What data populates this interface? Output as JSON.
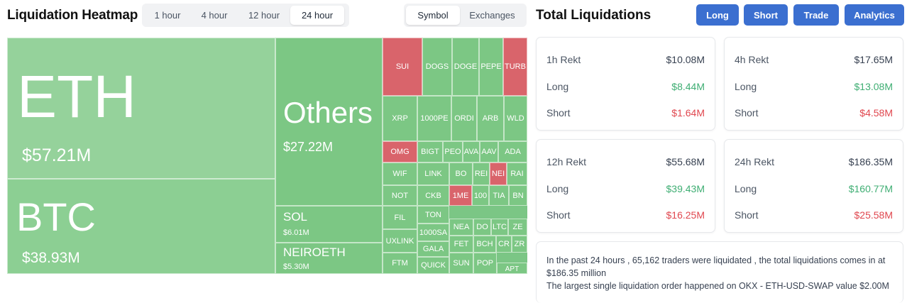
{
  "heatmap": {
    "title": "Liquidation Heatmap",
    "timeframes": [
      "1 hour",
      "4 hour",
      "12 hour",
      "24 hour"
    ],
    "active_timeframe": "24 hour",
    "views": [
      "Symbol",
      "Exchanges"
    ],
    "active_view": "Symbol",
    "tiles": {
      "eth": {
        "symbol": "ETH",
        "value": "$57.21M"
      },
      "btc": {
        "symbol": "BTC",
        "value": "$38.93M"
      },
      "others": {
        "symbol": "Others",
        "value": "$27.22M"
      },
      "sol": {
        "symbol": "SOL",
        "value": "$6.01M"
      },
      "neiroeth": {
        "symbol": "NEIROETH",
        "value": "$5.30M"
      }
    },
    "small_tiles": [
      {
        "label": "SUI",
        "side": "short"
      },
      {
        "label": "DOGS",
        "side": "long"
      },
      {
        "label": "DOGE",
        "side": "long"
      },
      {
        "label": "PEPE",
        "side": "long"
      },
      {
        "label": "TURB",
        "side": "short"
      },
      {
        "label": "XRP",
        "side": "long"
      },
      {
        "label": "1000PE",
        "side": "long"
      },
      {
        "label": "ORDI",
        "side": "long"
      },
      {
        "label": "ARB",
        "side": "long"
      },
      {
        "label": "WLD",
        "side": "long"
      },
      {
        "label": "OMG",
        "side": "short"
      },
      {
        "label": "BIGT",
        "side": "long"
      },
      {
        "label": "PEO",
        "side": "long"
      },
      {
        "label": "AVA",
        "side": "long"
      },
      {
        "label": "AAV",
        "side": "long"
      },
      {
        "label": "ADA",
        "side": "long"
      },
      {
        "label": "WIF",
        "side": "long"
      },
      {
        "label": "LINK",
        "side": "long"
      },
      {
        "label": "BO",
        "side": "long"
      },
      {
        "label": "REI",
        "side": "long"
      },
      {
        "label": "NEI",
        "side": "short"
      },
      {
        "label": "RAI",
        "side": "long"
      },
      {
        "label": "NOT",
        "side": "long"
      },
      {
        "label": "CKB",
        "side": "long"
      },
      {
        "label": "1ME",
        "side": "short"
      },
      {
        "label": "100",
        "side": "long"
      },
      {
        "label": "TIA",
        "side": "long"
      },
      {
        "label": "BN",
        "side": "long"
      },
      {
        "label": "FIL",
        "side": "long"
      },
      {
        "label": "TON",
        "side": "long"
      },
      {
        "label": "UXLINK",
        "side": "long"
      },
      {
        "label": "1000SA",
        "side": "long"
      },
      {
        "label": "NEA",
        "side": "long"
      },
      {
        "label": "DO",
        "side": "long"
      },
      {
        "label": "LTC",
        "side": "long"
      },
      {
        "label": "ZE",
        "side": "long"
      },
      {
        "label": "GALA",
        "side": "long"
      },
      {
        "label": "FET",
        "side": "long"
      },
      {
        "label": "BCH",
        "side": "long"
      },
      {
        "label": "CR",
        "side": "long"
      },
      {
        "label": "ZR",
        "side": "long"
      },
      {
        "label": "FTM",
        "side": "long"
      },
      {
        "label": "QUICK",
        "side": "long"
      },
      {
        "label": "SUN",
        "side": "long"
      },
      {
        "label": "POP",
        "side": "long"
      },
      {
        "label": "APT",
        "side": "long"
      }
    ]
  },
  "totals": {
    "title": "Total Liquidations",
    "buttons": [
      "Long",
      "Short",
      "Trade",
      "Analytics"
    ],
    "cards": [
      {
        "label": "1h Rekt",
        "total": "$10.08M",
        "long_label": "Long",
        "long": "$8.44M",
        "short_label": "Short",
        "short": "$1.64M"
      },
      {
        "label": "4h Rekt",
        "total": "$17.65M",
        "long_label": "Long",
        "long": "$13.08M",
        "short_label": "Short",
        "short": "$4.58M"
      },
      {
        "label": "12h Rekt",
        "total": "$55.68M",
        "long_label": "Long",
        "long": "$39.43M",
        "short_label": "Short",
        "short": "$16.25M"
      },
      {
        "label": "24h Rekt",
        "total": "$186.35M",
        "long_label": "Long",
        "long": "$160.77M",
        "short_label": "Short",
        "short": "$25.58M"
      }
    ],
    "summary_line1": "In the past 24 hours , 65,162 traders were liquidated , the total liquidations comes in at",
    "summary_line2": "$186.35 million",
    "summary_line3": "The largest single liquidation order happened on OKX - ETH-USD-SWAP value $2.00M"
  },
  "colors": {
    "long_tile": "#7cc784",
    "short_tile": "#d9646b",
    "positive_text": "#3fae73",
    "negative_text": "#e0474f",
    "button": "#3b6fd0"
  }
}
